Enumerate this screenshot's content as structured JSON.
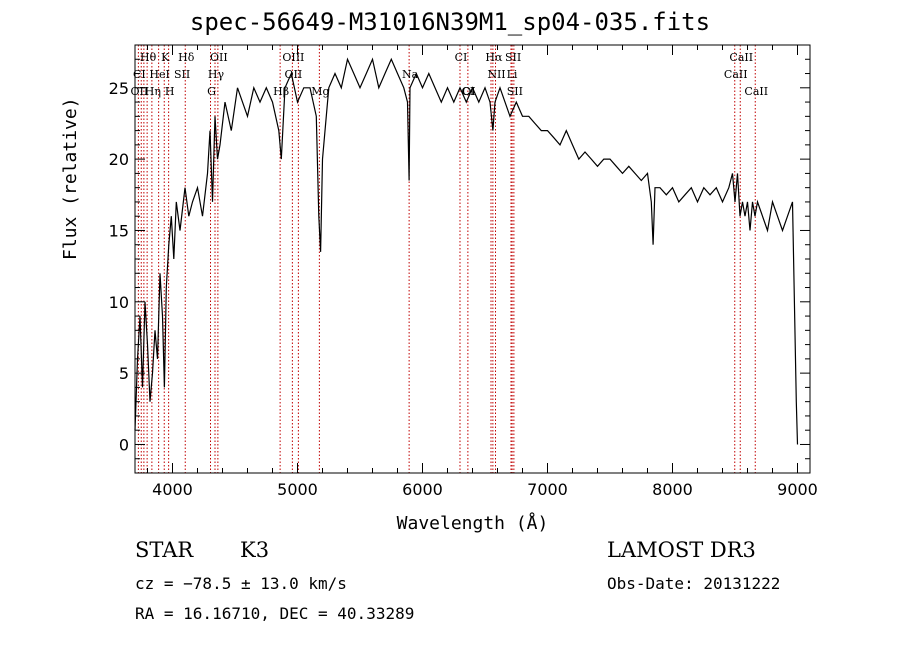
{
  "chart_data": {
    "type": "line",
    "title": "spec-56649-M31016N39M1_sp04-035.fits",
    "xlabel": "Wavelength (Å)",
    "ylabel": "Flux (relative)",
    "xlim": [
      3700,
      9100
    ],
    "ylim": [
      -2,
      28
    ],
    "x_ticks": [
      4000,
      5000,
      6000,
      7000,
      8000,
      9000
    ],
    "y_ticks": [
      0,
      5,
      10,
      15,
      20,
      25
    ],
    "series": [
      {
        "name": "flux",
        "x": [
          3700,
          3720,
          3740,
          3760,
          3780,
          3800,
          3820,
          3840,
          3860,
          3880,
          3900,
          3920,
          3935,
          3950,
          3970,
          3990,
          4010,
          4030,
          4060,
          4100,
          4130,
          4160,
          4200,
          4240,
          4280,
          4300,
          4320,
          4340,
          4360,
          4380,
          4420,
          4470,
          4520,
          4560,
          4600,
          4650,
          4700,
          4750,
          4800,
          4850,
          4870,
          4900,
          4950,
          5000,
          5050,
          5100,
          5150,
          5170,
          5185,
          5200,
          5250,
          5300,
          5350,
          5400,
          5450,
          5500,
          5550,
          5600,
          5650,
          5700,
          5750,
          5800,
          5850,
          5880,
          5893,
          5900,
          5950,
          6000,
          6050,
          6100,
          6150,
          6200,
          6250,
          6300,
          6350,
          6400,
          6450,
          6500,
          6540,
          6563,
          6580,
          6620,
          6660,
          6700,
          6750,
          6800,
          6850,
          6900,
          6950,
          7000,
          7050,
          7100,
          7150,
          7200,
          7250,
          7300,
          7350,
          7400,
          7450,
          7500,
          7550,
          7600,
          7650,
          7700,
          7750,
          7800,
          7830,
          7845,
          7860,
          7900,
          7950,
          8000,
          8050,
          8100,
          8150,
          8200,
          8250,
          8300,
          8350,
          8400,
          8450,
          8480,
          8500,
          8520,
          8540,
          8560,
          8580,
          8600,
          8620,
          8640,
          8660,
          8680,
          8720,
          8760,
          8800,
          8840,
          8880,
          8920,
          8960,
          8990,
          9000
        ],
        "values": [
          1,
          6,
          9,
          4,
          10,
          7,
          3,
          5,
          8,
          6,
          12,
          9,
          4,
          11,
          14,
          16,
          13,
          17,
          15,
          18,
          16,
          17,
          18,
          16,
          19,
          22,
          17,
          23,
          20,
          21,
          24,
          22,
          25,
          24,
          23,
          25,
          24,
          25,
          24,
          22,
          20,
          25,
          26,
          24,
          25,
          25,
          23,
          16,
          13.5,
          20,
          25,
          26,
          25,
          27,
          26,
          25,
          26,
          27,
          25,
          26,
          27,
          26,
          25,
          24,
          18.5,
          25,
          26,
          25,
          26,
          25,
          24,
          25,
          24,
          25,
          24,
          25,
          24,
          25,
          24,
          22,
          24,
          25,
          24,
          23,
          24,
          23,
          23,
          22.5,
          22,
          22,
          21.5,
          21,
          22,
          21,
          20,
          20.5,
          20,
          19.5,
          20,
          20,
          19.5,
          19,
          19.5,
          19,
          18.5,
          19,
          17,
          14,
          18,
          18,
          17.5,
          18,
          17,
          17.5,
          18,
          17,
          18,
          17.5,
          18,
          17,
          18,
          19,
          17,
          19,
          16,
          17,
          16,
          17,
          15,
          17,
          16,
          17,
          16,
          15,
          17,
          16,
          15,
          16,
          17,
          3,
          0
        ]
      }
    ],
    "line_labels": [
      {
        "text": "Hθ",
        "wave": 3797,
        "row": 0
      },
      {
        "text": "K",
        "wave": 3934,
        "row": 0
      },
      {
        "text": "Hδ",
        "wave": 4102,
        "row": 0
      },
      {
        "text": "OII",
        "wave": 4363,
        "row": 0
      },
      {
        "text": "OIII",
        "wave": 4959,
        "row": 0
      },
      {
        "text": "CI",
        "wave": 6300,
        "row": 0
      },
      {
        "text": "Hα",
        "wave": 6563,
        "row": 0
      },
      {
        "text": "SII",
        "wave": 6717,
        "row": 0
      },
      {
        "text": "CaII",
        "wave": 8542,
        "row": 0
      },
      {
        "text": "CI",
        "wave": 3727,
        "row": 1
      },
      {
        "text": "HeI",
        "wave": 3889,
        "row": 1
      },
      {
        "text": "SII",
        "wave": 4069,
        "row": 1
      },
      {
        "text": "Hγ",
        "wave": 4340,
        "row": 1
      },
      {
        "text": "OII",
        "wave": 4959,
        "row": 1
      },
      {
        "text": "Na",
        "wave": 5893,
        "row": 1
      },
      {
        "text": "NII",
        "wave": 6584,
        "row": 1
      },
      {
        "text": "Li",
        "wave": 6708,
        "row": 1
      },
      {
        "text": "CaII",
        "wave": 8498,
        "row": 1
      },
      {
        "text": "OII",
        "wave": 3727,
        "row": 2
      },
      {
        "text": "Hη",
        "wave": 3835,
        "row": 2
      },
      {
        "text": "H",
        "wave": 3969,
        "row": 2
      },
      {
        "text": "G",
        "wave": 4304,
        "row": 2
      },
      {
        "text": "Hβ",
        "wave": 4861,
        "row": 2
      },
      {
        "text": "Mg",
        "wave": 5175,
        "row": 2
      },
      {
        "text": "CI",
        "wave": 6355,
        "row": 2
      },
      {
        "text": "OI",
        "wave": 6363,
        "row": 2
      },
      {
        "text": "SII",
        "wave": 6731,
        "row": 2
      },
      {
        "text": "CaII",
        "wave": 8662,
        "row": 2
      }
    ],
    "marker_lines": [
      3727,
      3750,
      3771,
      3797,
      3835,
      3889,
      3934,
      3969,
      4102,
      4304,
      4340,
      4363,
      4861,
      4959,
      5007,
      5175,
      5893,
      6300,
      6363,
      6548,
      6563,
      6584,
      6708,
      6717,
      6731,
      8498,
      8542,
      8662
    ]
  },
  "footer": {
    "object_class": "STAR",
    "subclass": "K3",
    "survey": "LAMOST DR3",
    "redshift_line": "cz = −78.5 ± 13.0 km/s",
    "obs_date": "Obs-Date: 20131222",
    "coords": "RA =  16.16710, DEC =  40.33289"
  },
  "colors": {
    "line_marker": "#c00000",
    "axis": "#000000",
    "spectrum": "#000000"
  }
}
